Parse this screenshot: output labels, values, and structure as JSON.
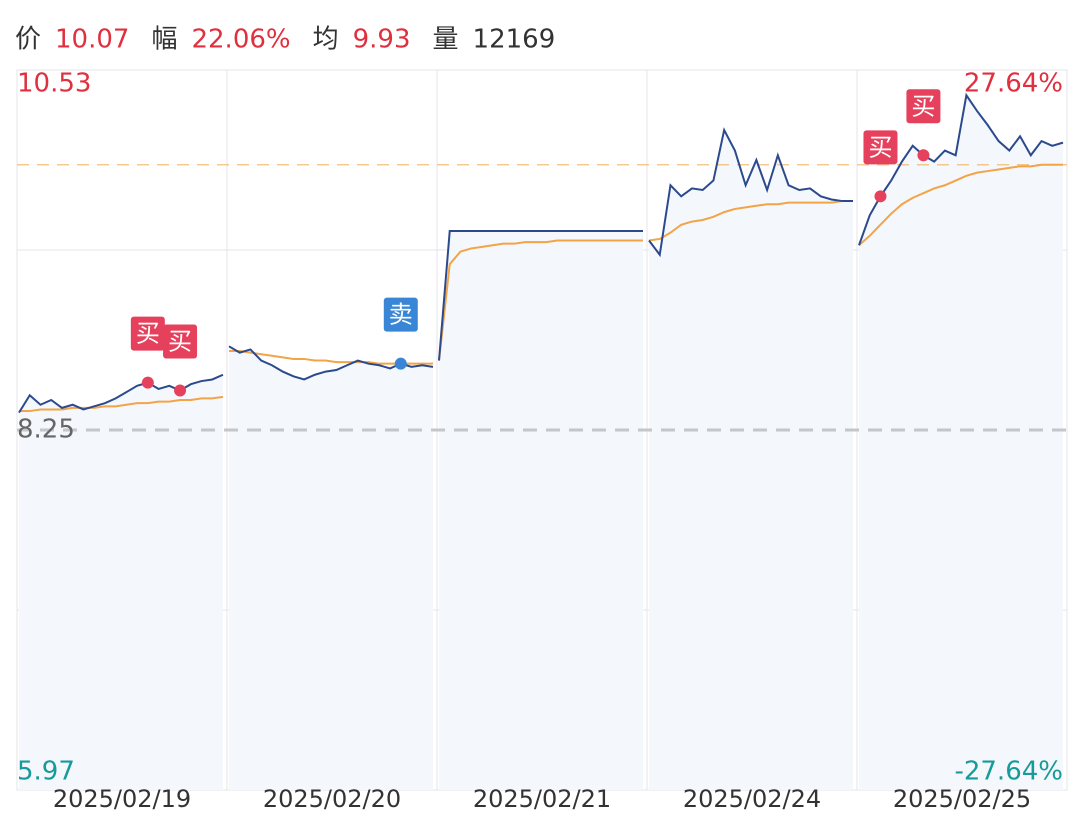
{
  "header": [
    {
      "label": "价",
      "value": 10.07
    },
    {
      "label": "幅",
      "value": "22.06%"
    },
    {
      "label": "均",
      "value": 9.93
    },
    {
      "label": "量",
      "value": 12169
    }
  ],
  "chart_data": {
    "type": "line",
    "ylim": [
      5.97,
      10.53
    ],
    "yticks": [
      10.53,
      8.25,
      5.97
    ],
    "gridlines": [
      9.39,
      7.11
    ],
    "y2lim": [
      -27.64,
      27.64
    ],
    "y2ticks": [
      {
        "value": 27.64,
        "label": "27.64%"
      },
      {
        "value": -27.64,
        "label": "-27.64%"
      }
    ],
    "prev_close": 8.25,
    "avg_line": 9.93,
    "price_color": "#2b4a8e",
    "avg_color": "#f2a446",
    "buy_color": "#e6415c",
    "sell_color": "#3a86d6",
    "days": [
      {
        "date": "2025/02/19",
        "price": [
          8.36,
          8.47,
          8.41,
          8.44,
          8.39,
          8.41,
          8.38,
          8.4,
          8.42,
          8.45,
          8.49,
          8.53,
          8.55,
          8.51,
          8.53,
          8.5,
          8.54,
          8.56,
          8.57,
          8.6
        ],
        "avg": [
          8.37,
          8.37,
          8.38,
          8.38,
          8.38,
          8.39,
          8.39,
          8.39,
          8.4,
          8.4,
          8.41,
          8.42,
          8.42,
          8.43,
          8.43,
          8.44,
          8.44,
          8.45,
          8.45,
          8.46
        ],
        "signals": [
          null,
          null,
          null,
          null,
          null,
          null,
          null,
          null,
          null,
          null,
          null,
          null,
          "买",
          null,
          null,
          "买",
          null,
          null,
          null,
          null
        ]
      },
      {
        "date": "2025/02/20",
        "price": [
          8.78,
          8.74,
          8.76,
          8.69,
          8.66,
          8.62,
          8.59,
          8.57,
          8.6,
          8.62,
          8.63,
          8.66,
          8.69,
          8.67,
          8.66,
          8.64,
          8.67,
          8.65,
          8.66,
          8.65
        ],
        "avg": [
          8.75,
          8.75,
          8.74,
          8.73,
          8.72,
          8.71,
          8.7,
          8.7,
          8.69,
          8.69,
          8.68,
          8.68,
          8.68,
          8.68,
          8.67,
          8.67,
          8.67,
          8.67,
          8.67,
          8.67
        ],
        "signals": [
          null,
          null,
          null,
          null,
          null,
          null,
          null,
          null,
          null,
          null,
          null,
          null,
          null,
          null,
          null,
          null,
          "卖",
          null,
          null,
          null
        ]
      },
      {
        "date": "2025/02/21",
        "price": [
          8.69,
          9.51,
          9.51,
          9.51,
          9.51,
          9.51,
          9.51,
          9.51,
          9.51,
          9.51,
          9.51,
          9.51,
          9.51,
          9.51,
          9.51,
          9.51,
          9.51,
          9.51,
          9.51,
          9.51
        ],
        "avg": [
          8.69,
          9.3,
          9.38,
          9.4,
          9.41,
          9.42,
          9.43,
          9.43,
          9.44,
          9.44,
          9.44,
          9.45,
          9.45,
          9.45,
          9.45,
          9.45,
          9.45,
          9.45,
          9.45,
          9.45
        ],
        "signals": [
          null,
          null,
          null,
          null,
          null,
          null,
          null,
          null,
          null,
          null,
          null,
          null,
          null,
          null,
          null,
          null,
          null,
          null,
          null,
          null
        ]
      },
      {
        "date": "2025/02/24",
        "price": [
          9.45,
          9.36,
          9.8,
          9.73,
          9.78,
          9.77,
          9.83,
          10.15,
          10.02,
          9.8,
          9.96,
          9.77,
          9.99,
          9.8,
          9.77,
          9.78,
          9.73,
          9.71,
          9.7,
          9.7
        ],
        "avg": [
          9.45,
          9.46,
          9.5,
          9.55,
          9.57,
          9.58,
          9.6,
          9.63,
          9.65,
          9.66,
          9.67,
          9.68,
          9.68,
          9.69,
          9.69,
          9.69,
          9.69,
          9.69,
          9.7,
          9.7
        ],
        "signals": [
          null,
          null,
          null,
          null,
          null,
          null,
          null,
          null,
          null,
          null,
          null,
          null,
          null,
          null,
          null,
          null,
          null,
          null,
          null,
          null
        ]
      },
      {
        "date": "2025/02/25",
        "price": [
          9.42,
          9.61,
          9.73,
          9.83,
          9.95,
          10.05,
          9.99,
          9.95,
          10.02,
          9.99,
          10.37,
          10.27,
          10.18,
          10.08,
          10.02,
          10.11,
          9.99,
          10.08,
          10.05,
          10.07
        ],
        "avg": [
          9.42,
          9.48,
          9.55,
          9.62,
          9.68,
          9.72,
          9.75,
          9.78,
          9.8,
          9.83,
          9.86,
          9.88,
          9.89,
          9.9,
          9.91,
          9.92,
          9.92,
          9.93,
          9.93,
          9.93
        ],
        "signals": [
          null,
          null,
          "买",
          null,
          null,
          null,
          "买",
          null,
          null,
          null,
          null,
          null,
          null,
          null,
          null,
          null,
          null,
          null,
          null,
          null
        ]
      }
    ]
  }
}
